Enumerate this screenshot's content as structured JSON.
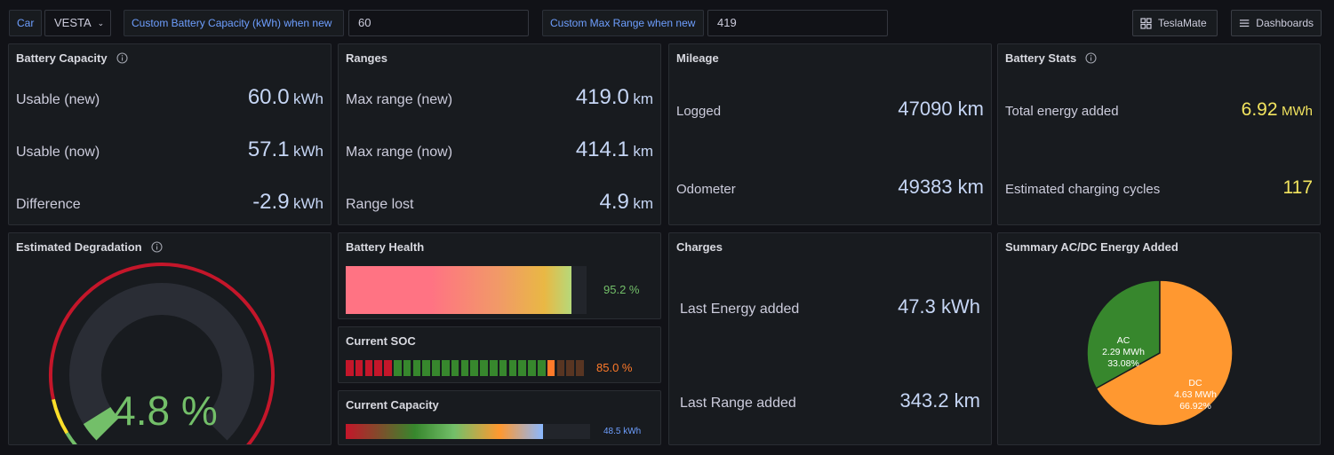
{
  "topbar": {
    "car_label": "Car",
    "car_value": "VESTA",
    "battery_capacity_label": "Custom Battery Capacity (kWh) when new",
    "battery_capacity_value": "60",
    "max_range_label": "Custom Max Range when new",
    "max_range_value": "419",
    "teslamate_button": "TeslaMate",
    "dashboards_button": "Dashboards"
  },
  "battery_capacity": {
    "title": "Battery Capacity",
    "rows": [
      {
        "label": "Usable (new)",
        "value": "60.0",
        "unit": "kWh"
      },
      {
        "label": "Usable (now)",
        "value": "57.1",
        "unit": "kWh"
      },
      {
        "label": "Difference",
        "value": "-2.9",
        "unit": "kWh"
      }
    ]
  },
  "ranges": {
    "title": "Ranges",
    "rows": [
      {
        "label": "Max range (new)",
        "value": "419.0",
        "unit": "km"
      },
      {
        "label": "Max range (now)",
        "value": "414.1",
        "unit": "km"
      },
      {
        "label": "Range lost",
        "value": "4.9",
        "unit": "km"
      }
    ]
  },
  "mileage": {
    "title": "Mileage",
    "rows": [
      {
        "label": "Logged",
        "value": "47090 km"
      },
      {
        "label": "Odometer",
        "value": "49383 km"
      }
    ]
  },
  "battery_stats": {
    "title": "Battery Stats",
    "rows": [
      {
        "label": "Total energy added",
        "value": "6.92",
        "unit": "MWh"
      },
      {
        "label": "Estimated charging cycles",
        "value": "117"
      }
    ]
  },
  "degradation": {
    "title": "Estimated Degradation",
    "value_text": "4.8 %",
    "value": 4.8,
    "max": 100,
    "colors": {
      "green": "#73bf69",
      "yellow": "#fade2a",
      "red": "#c4162a",
      "track": "#2a2d35"
    }
  },
  "battery_health": {
    "title": "Battery Health",
    "value_text": "95.2 %",
    "value": 95.2
  },
  "current_soc": {
    "title": "Current SOC",
    "value_text": "85.0 %",
    "value": 85.0
  },
  "current_capacity": {
    "title": "Current Capacity",
    "value_text": "48.5 kWh",
    "value": 48.5,
    "max": 60
  },
  "charges": {
    "title": "Charges",
    "rows": [
      {
        "label": "Last Energy added",
        "value": "47.3 kWh"
      },
      {
        "label": "Last Range added",
        "value": "343.2 km"
      }
    ]
  },
  "summary": {
    "title": "Summary AC/DC Energy Added",
    "chart_data": {
      "type": "pie",
      "title": "Summary AC/DC Energy Added",
      "slices": [
        {
          "name": "AC",
          "value": 2.29,
          "value_text": "2.29 MWh",
          "percent": "33.08%",
          "color": "#37872d"
        },
        {
          "name": "DC",
          "value": 4.63,
          "value_text": "4.63 MWh",
          "percent": "66.92%",
          "color": "#ff9830"
        }
      ]
    }
  }
}
